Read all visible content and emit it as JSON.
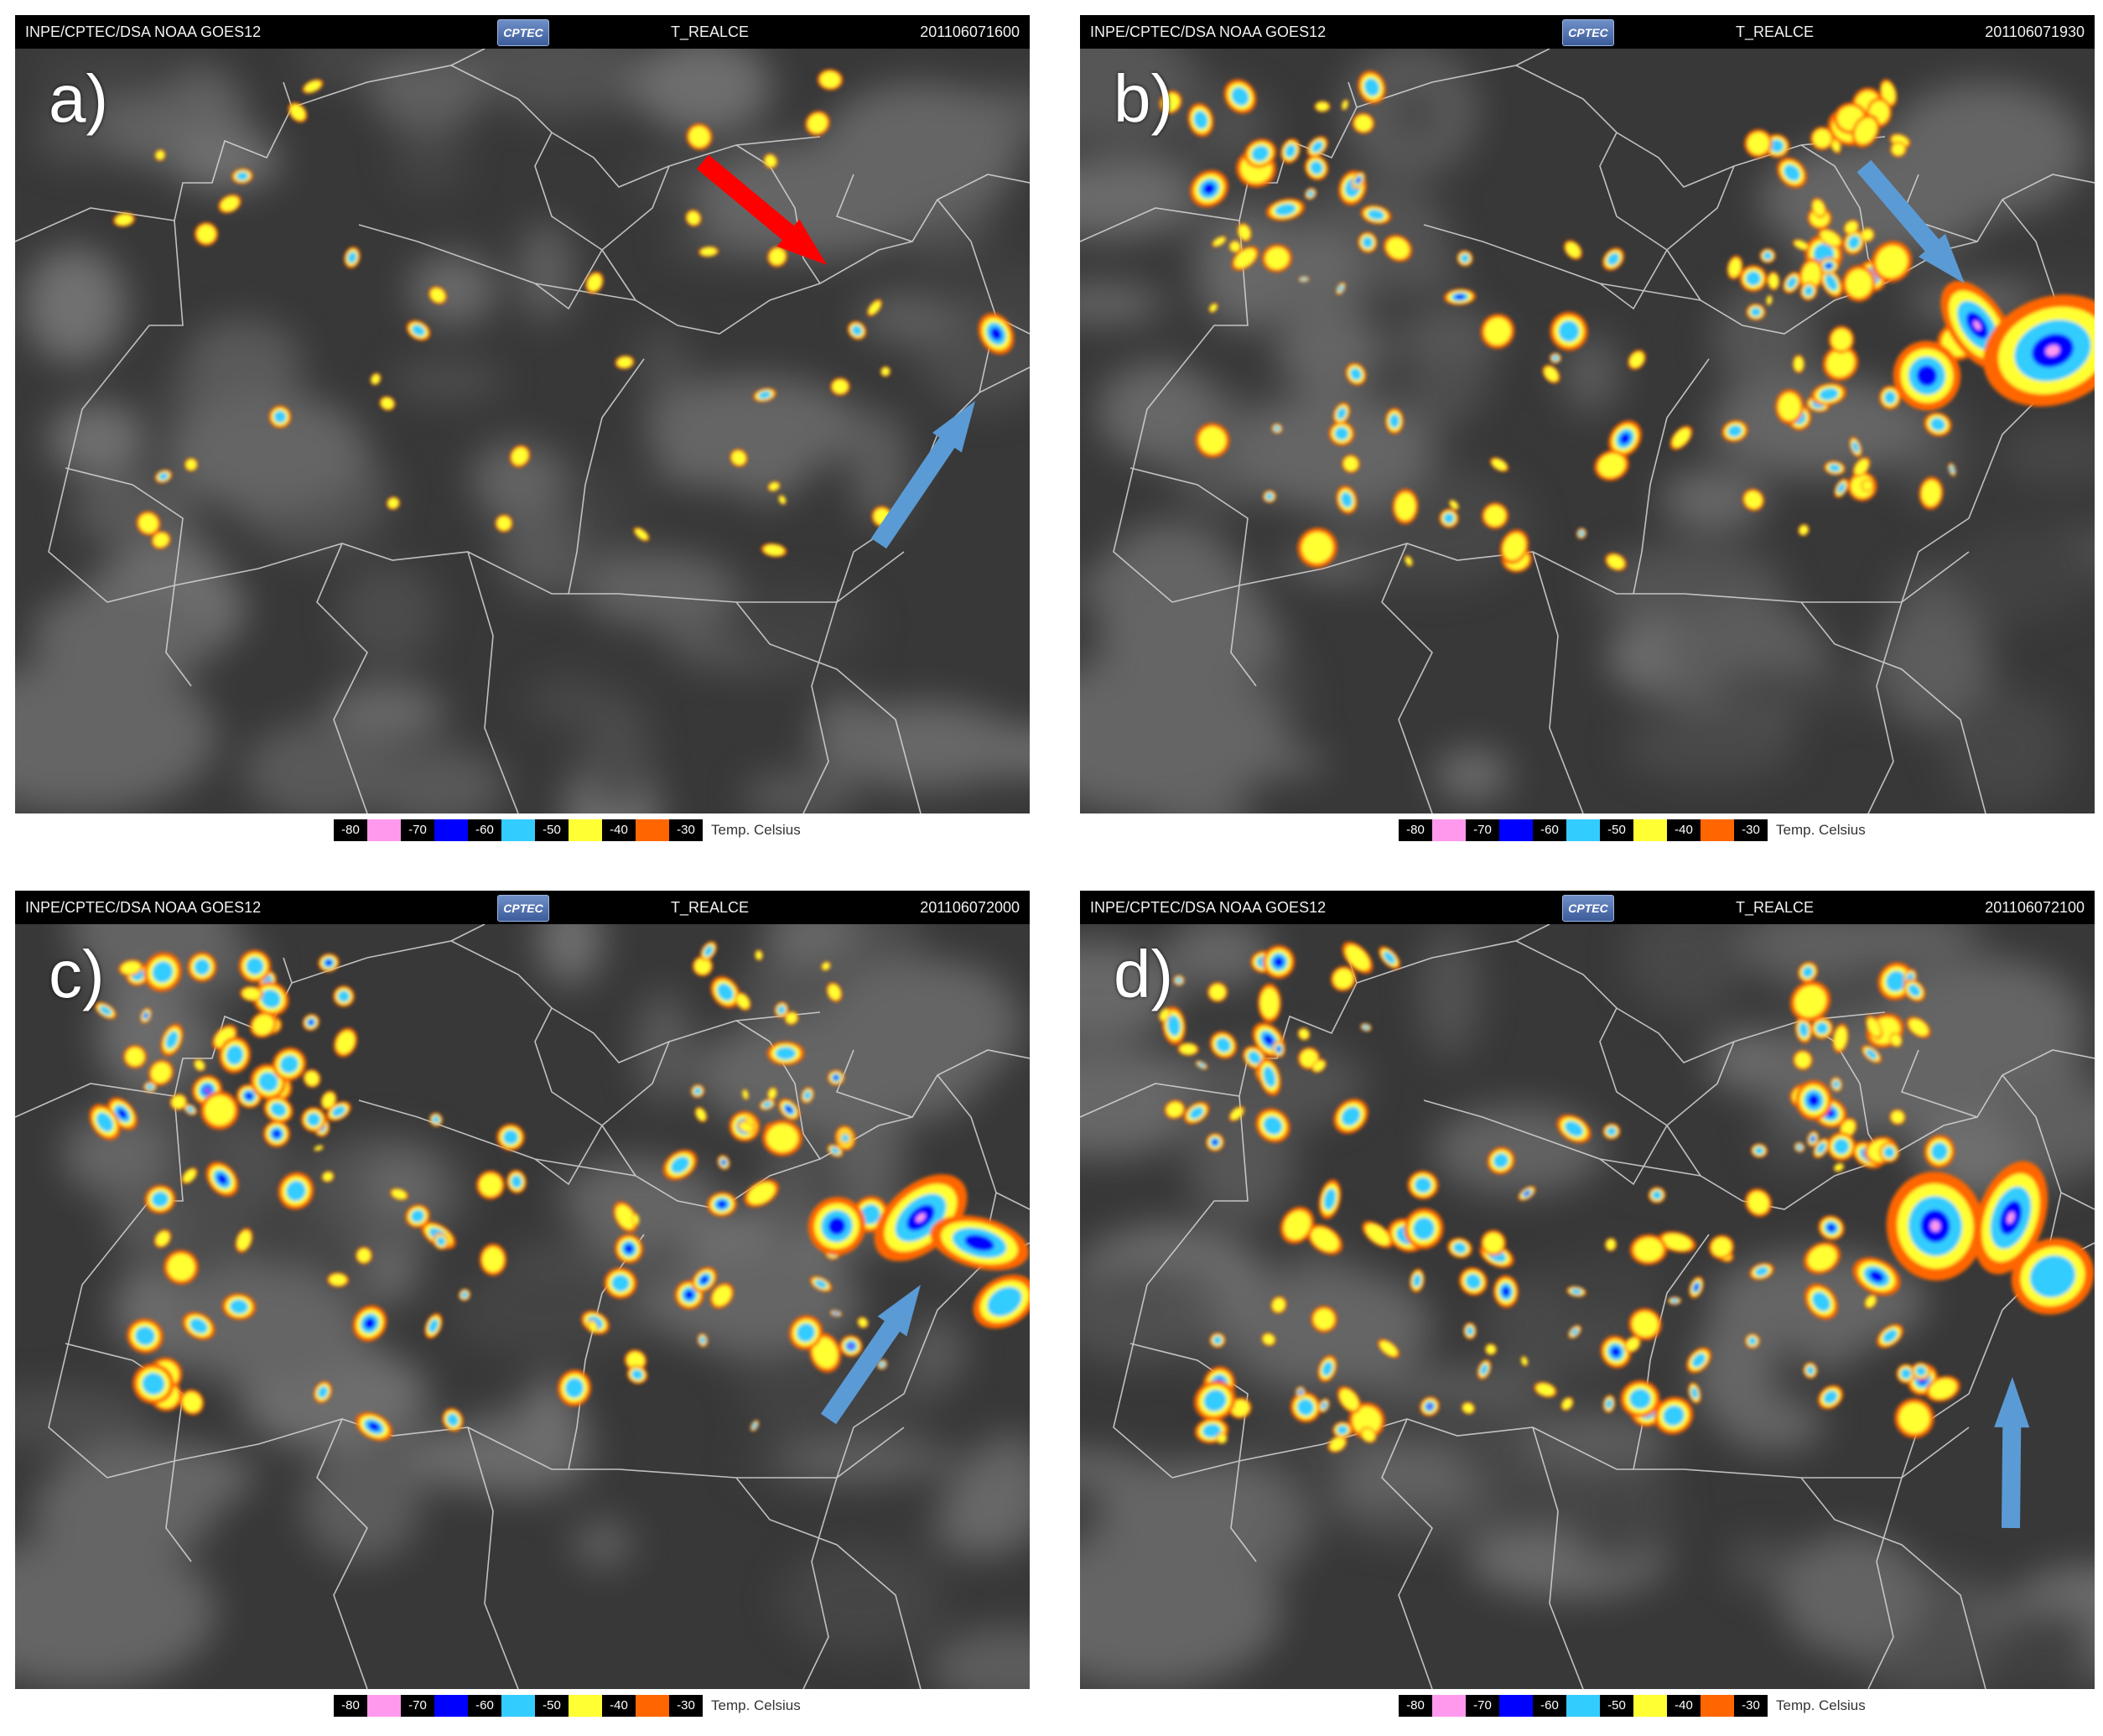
{
  "panels": [
    {
      "label": "a)",
      "header_left": "INPE/CPTEC/DSA  NOAA  GOES12",
      "logo": "CPTEC",
      "product": "T_REALCE",
      "timestamp": "201106071600"
    },
    {
      "label": "b)",
      "header_left": "INPE/CPTEC/DSA  NOAA  GOES12",
      "logo": "CPTEC",
      "product": "T_REALCE",
      "timestamp": "201106071930"
    },
    {
      "label": "c)",
      "header_left": "INPE/CPTEC/DSA  NOAA  GOES12",
      "logo": "CPTEC",
      "product": "T_REALCE",
      "timestamp": "201106072000"
    },
    {
      "label": "d)",
      "header_left": "INPE/CPTEC/DSA  NOAA  GOES12",
      "logo": "CPTEC",
      "product": "T_REALCE",
      "timestamp": "201106072100"
    }
  ],
  "legend": {
    "items": [
      {
        "text": "-80",
        "color": "#000000"
      },
      {
        "text": "",
        "color": "#ff99ee"
      },
      {
        "text": "-70",
        "color": "#000000"
      },
      {
        "text": "",
        "color": "#0000ff"
      },
      {
        "text": "-60",
        "color": "#000000"
      },
      {
        "text": "",
        "color": "#33ccff"
      },
      {
        "text": "-50",
        "color": "#000000"
      },
      {
        "text": "",
        "color": "#ffff33"
      },
      {
        "text": "-40",
        "color": "#000000"
      },
      {
        "text": "",
        "color": "#ff6600"
      },
      {
        "text": "-30",
        "color": "#000000"
      }
    ],
    "unit": "Temp. Celsius"
  },
  "colors": {
    "cold_top_pink": "#ff99ee",
    "cold_top_blue": "#0000ff",
    "cold_top_cyan": "#33ccff",
    "cold_top_yellow": "#ffff33",
    "cold_top_orange": "#ff6600",
    "arrow_red": "#ff0000",
    "arrow_blue": "#5b9bd5"
  }
}
